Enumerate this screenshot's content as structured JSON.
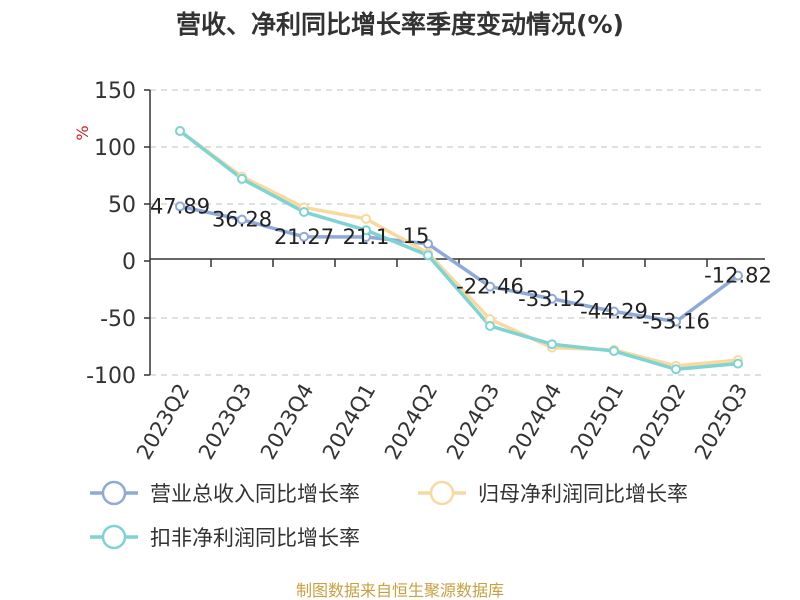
{
  "chart_data": {
    "type": "line",
    "title": "营收、净利同比增长率季度变动情况(%)",
    "ylabel": "%",
    "xlabel": "",
    "ylim": [
      -100,
      150
    ],
    "yticks": [
      150,
      100,
      50,
      0,
      -50,
      -100
    ],
    "grid": true,
    "legend_position": "bottom",
    "categories": [
      "2023Q2",
      "2023Q3",
      "2023Q4",
      "2024Q1",
      "2024Q2",
      "2024Q3",
      "2024Q4",
      "2025Q1",
      "2025Q2",
      "2025Q3"
    ],
    "series": [
      {
        "name": "营业总收入同比增长率",
        "color": "#8fa9d8",
        "values": [
          47.89,
          36.28,
          21.27,
          21.1,
          15,
          -22.46,
          -33.12,
          -44.29,
          -53.16,
          -12.82
        ],
        "labels": [
          "47.89",
          "36.28",
          "21.27",
          "21.1",
          "15",
          "-22.46",
          "-33.12",
          "-44.29",
          "-53.16",
          "-12.82"
        ]
      },
      {
        "name": "归母净利润同比增长率",
        "color": "#f8d9a0",
        "values": [
          114,
          74,
          47,
          37,
          7,
          -51,
          -76,
          -78,
          -92,
          -87
        ]
      },
      {
        "name": "扣非净利润同比增长率",
        "color": "#7fd3d3",
        "values": [
          114,
          72,
          43,
          27,
          5,
          -57,
          -73,
          -79,
          -95,
          -90
        ]
      }
    ],
    "source": "制图数据来自恒生聚源数据库",
    "colors": {
      "axis": "#333333",
      "grid": "#cccccc",
      "unit": "#cc2222",
      "source": "#c8a040"
    }
  }
}
